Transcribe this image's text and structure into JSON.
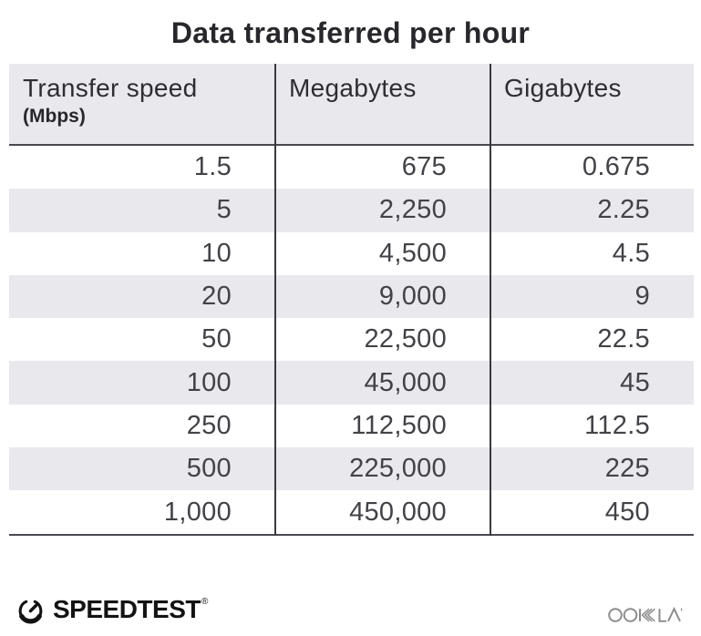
{
  "title": "Data transferred per hour",
  "table": {
    "columns": [
      {
        "label": "Transfer speed",
        "sublabel": "(Mbps)"
      },
      {
        "label": "Megabytes",
        "sublabel": ""
      },
      {
        "label": "Gigabytes",
        "sublabel": ""
      }
    ],
    "rows": [
      [
        "1.5",
        "675",
        "0.675"
      ],
      [
        "5",
        "2,250",
        "2.25"
      ],
      [
        "10",
        "4,500",
        "4.5"
      ],
      [
        "20",
        "9,000",
        "9"
      ],
      [
        "50",
        "22,500",
        "22.5"
      ],
      [
        "100",
        "45,000",
        "45"
      ],
      [
        "250",
        "112,500",
        "112.5"
      ],
      [
        "500",
        "225,000",
        "225"
      ],
      [
        "1,000",
        "450,000",
        "450"
      ]
    ]
  },
  "footer": {
    "speedtest_label": "SPEEDTEST",
    "speedtest_trademark": "®",
    "ookla_label": "OOKLA",
    "gauge_icon": "speedtest-gauge-icon",
    "ookla_icon": "ookla-wordmark-icon"
  },
  "colors": {
    "stripe_gray": "#e9e8ec",
    "header_bg": "#e9e8ec",
    "rule_dark": "#4b4950",
    "divider_dark": "#3b393f",
    "title_text": "#28272b",
    "number_text": "#434247",
    "speedtest_black": "#131313",
    "ookla_gray": "#8d8d8d"
  },
  "chart_data": {
    "type": "table",
    "title": "Data transferred per hour",
    "columns": [
      "Transfer speed (Mbps)",
      "Megabytes",
      "Gigabytes"
    ],
    "rows": [
      [
        1.5,
        675,
        0.675
      ],
      [
        5,
        2250,
        2.25
      ],
      [
        10,
        4500,
        4.5
      ],
      [
        20,
        9000,
        9
      ],
      [
        50,
        22500,
        22.5
      ],
      [
        100,
        45000,
        45
      ],
      [
        250,
        112500,
        112.5
      ],
      [
        500,
        225000,
        225
      ],
      [
        1000,
        450000,
        450
      ]
    ],
    "layout": {
      "zebra_striped_rows": true,
      "striped_row_indices": [
        1,
        3,
        5,
        7
      ],
      "column_dividers": true
    }
  }
}
